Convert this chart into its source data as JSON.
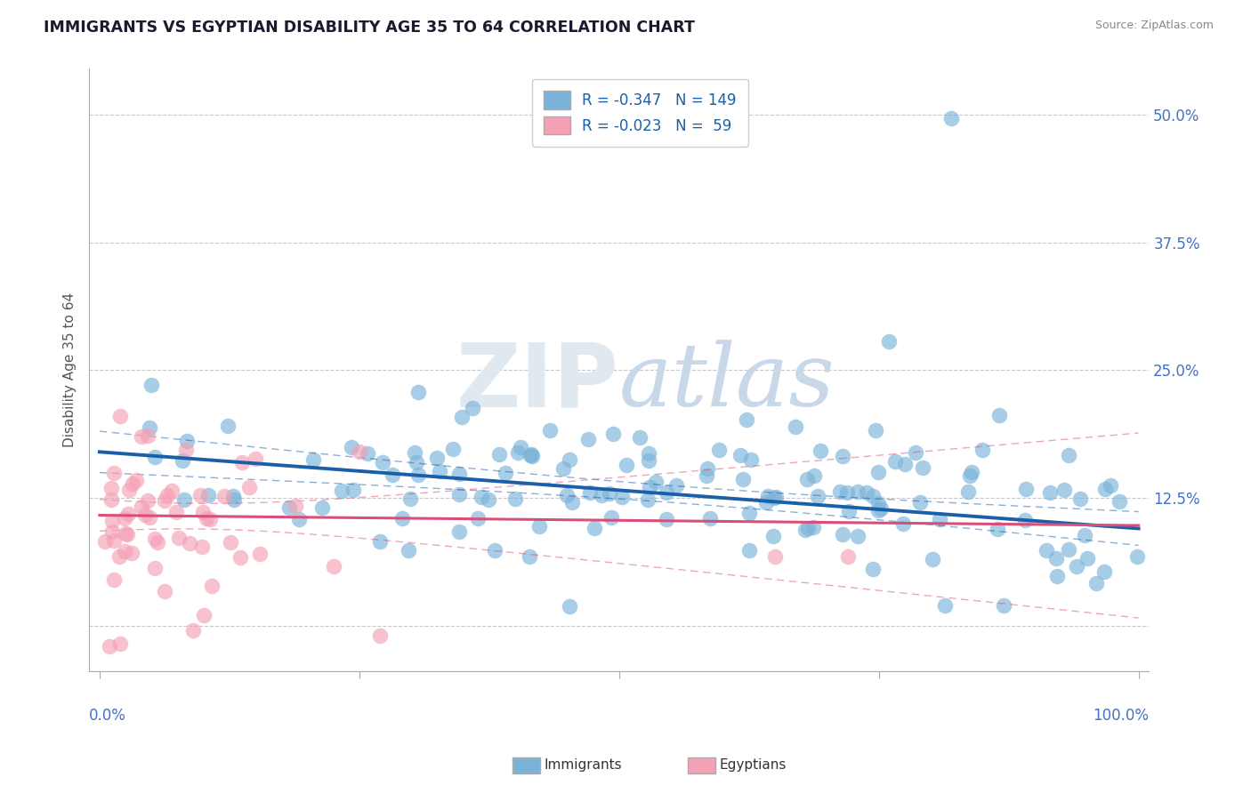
{
  "title": "IMMIGRANTS VS EGYPTIAN DISABILITY AGE 35 TO 64 CORRELATION CHART",
  "source": "Source: ZipAtlas.com",
  "ylabel": "Disability Age 35 to 64",
  "immigrants_R": -0.347,
  "immigrants_N": 149,
  "egyptians_R": -0.023,
  "egyptians_N": 59,
  "blue_scatter_color": "#7ab3d9",
  "blue_line_color": "#1a5fa8",
  "pink_scatter_color": "#f4a0b5",
  "pink_line_color": "#d94f7a",
  "background_color": "#ffffff",
  "grid_color": "#c8c8c8",
  "title_color": "#1a1a2e",
  "axis_label_color": "#4472c4",
  "watermark_color": "#e0e8f0",
  "ytick_vals": [
    0.0,
    0.125,
    0.25,
    0.375,
    0.5
  ],
  "ytick_labels": [
    "",
    "12.5%",
    "25.0%",
    "37.5%",
    "50.0%"
  ]
}
